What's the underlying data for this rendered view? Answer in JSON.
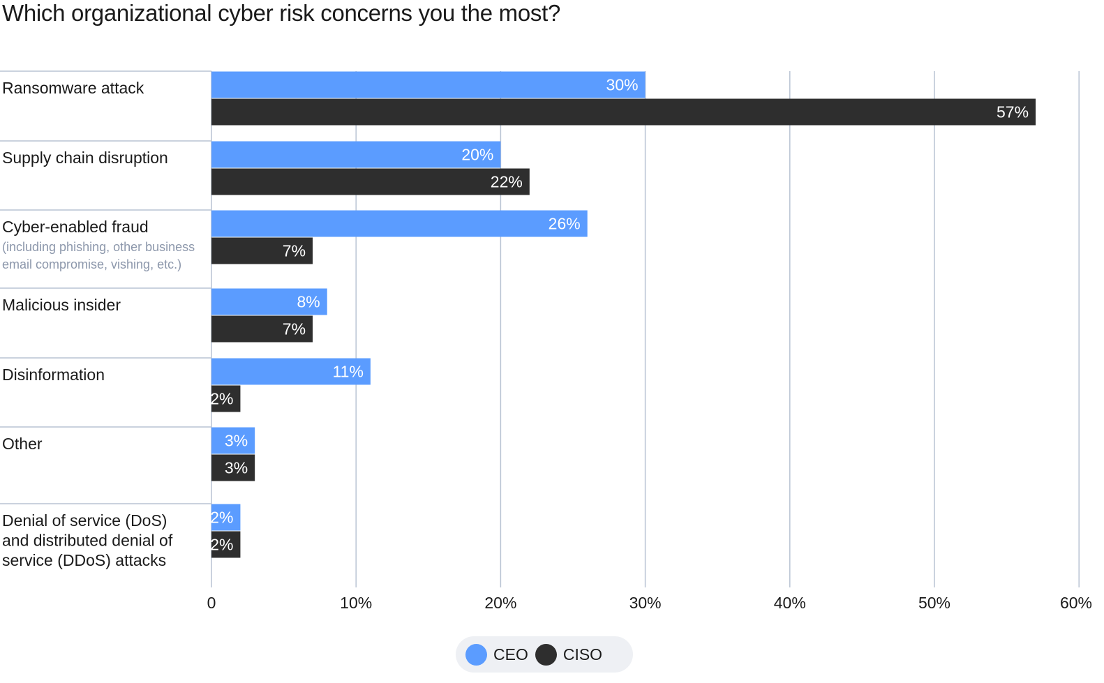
{
  "chart_data": {
    "type": "bar",
    "orientation": "horizontal",
    "title": "Which organizational cyber risk concerns you the most?",
    "categories": [
      {
        "label": "Ransomware attack",
        "sublabel": ""
      },
      {
        "label": "Supply chain disruption",
        "sublabel": ""
      },
      {
        "label": "Cyber-enabled fraud",
        "sublabel": "(including phishing, other business email compromise, vishing, etc.)"
      },
      {
        "label": "Malicious insider",
        "sublabel": ""
      },
      {
        "label": "Disinformation",
        "sublabel": ""
      },
      {
        "label": "Other",
        "sublabel": ""
      },
      {
        "label": "Denial of service (DoS) and distributed denial of service (DDoS) attacks",
        "sublabel": ""
      }
    ],
    "series": [
      {
        "name": "CEO",
        "color": "#5b9cff",
        "values": [
          30,
          20,
          26,
          8,
          11,
          3,
          2
        ]
      },
      {
        "name": "CISO",
        "color": "#2e2e2e",
        "values": [
          57,
          22,
          7,
          7,
          2,
          3,
          2
        ]
      }
    ],
    "xlim": [
      0,
      60
    ],
    "ticks": [
      {
        "value": 0,
        "label": "0"
      },
      {
        "value": 10,
        "label": "10%"
      },
      {
        "value": 20,
        "label": "20%"
      },
      {
        "value": 30,
        "label": "30%"
      },
      {
        "value": 40,
        "label": "40%"
      },
      {
        "value": 50,
        "label": "50%"
      },
      {
        "value": 60,
        "label": "60%"
      }
    ],
    "value_suffix": "%",
    "grid": true,
    "legend_position": "bottom-center"
  }
}
